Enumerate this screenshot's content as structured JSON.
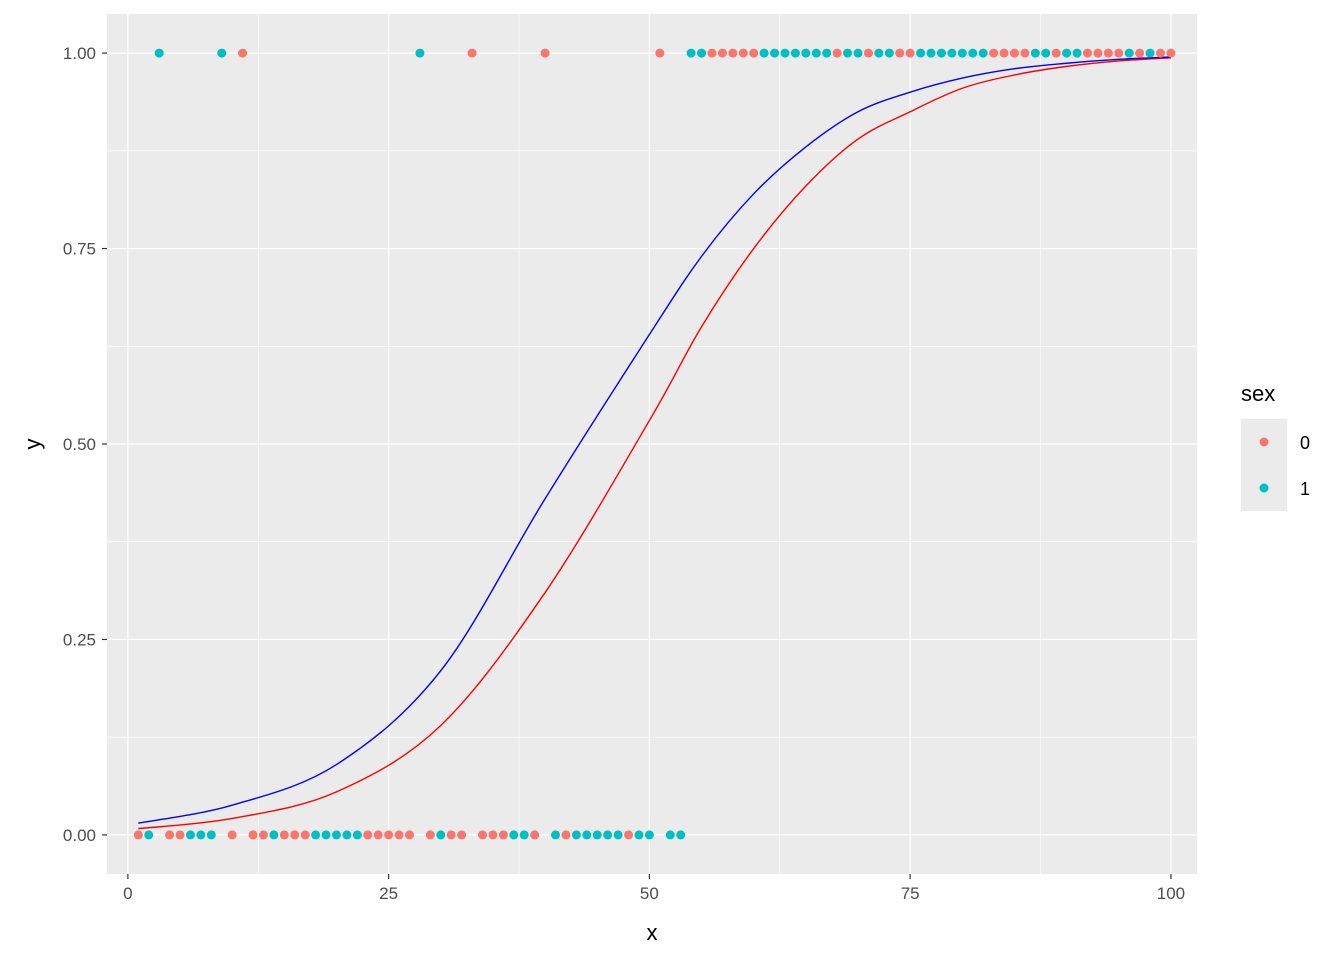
{
  "chart_data": {
    "type": "scatter",
    "xlabel": "x",
    "ylabel": "y",
    "xlim": [
      -2,
      102.5
    ],
    "ylim": [
      -0.05,
      1.05
    ],
    "x_ticks": [
      0,
      25,
      50,
      75,
      100
    ],
    "x_tick_labels": [
      "0",
      "25",
      "50",
      "75",
      "100"
    ],
    "y_ticks": [
      0,
      0.25,
      0.5,
      0.75,
      1
    ],
    "y_tick_labels": [
      "0.00",
      "0.25",
      "0.50",
      "0.75",
      "1.00"
    ],
    "grid": true,
    "legend": {
      "title": "sex",
      "position": "right",
      "entries": [
        {
          "label": "0",
          "color": "#F8766D"
        },
        {
          "label": "1",
          "color": "#00BFC4"
        }
      ]
    },
    "series": [
      {
        "name": "0",
        "color": "#F8766D",
        "points": [
          [
            1,
            0
          ],
          [
            4,
            0
          ],
          [
            5,
            0
          ],
          [
            10,
            0
          ],
          [
            12,
            0
          ],
          [
            13,
            0
          ],
          [
            15,
            0
          ],
          [
            16,
            0
          ],
          [
            17,
            0
          ],
          [
            23,
            0
          ],
          [
            24,
            0
          ],
          [
            25,
            0
          ],
          [
            26,
            0
          ],
          [
            27,
            0
          ],
          [
            29,
            0
          ],
          [
            31,
            0
          ],
          [
            32,
            0
          ],
          [
            34,
            0
          ],
          [
            35,
            0
          ],
          [
            36,
            0
          ],
          [
            39,
            0
          ],
          [
            42,
            0
          ],
          [
            48,
            0
          ],
          [
            11,
            1
          ],
          [
            33,
            1
          ],
          [
            40,
            1
          ],
          [
            51,
            1
          ],
          [
            56,
            1
          ],
          [
            57,
            1
          ],
          [
            58,
            1
          ],
          [
            59,
            1
          ],
          [
            60,
            1
          ],
          [
            68,
            1
          ],
          [
            71,
            1
          ],
          [
            74,
            1
          ],
          [
            75,
            1
          ],
          [
            83,
            1
          ],
          [
            84,
            1
          ],
          [
            85,
            1
          ],
          [
            86,
            1
          ],
          [
            89,
            1
          ],
          [
            92,
            1
          ],
          [
            93,
            1
          ],
          [
            94,
            1
          ],
          [
            95,
            1
          ],
          [
            97,
            1
          ],
          [
            99,
            1
          ],
          [
            100,
            1
          ]
        ]
      },
      {
        "name": "1",
        "color": "#00BFC4",
        "points": [
          [
            2,
            0
          ],
          [
            6,
            0
          ],
          [
            7,
            0
          ],
          [
            8,
            0
          ],
          [
            14,
            0
          ],
          [
            18,
            0
          ],
          [
            19,
            0
          ],
          [
            20,
            0
          ],
          [
            21,
            0
          ],
          [
            22,
            0
          ],
          [
            30,
            0
          ],
          [
            37,
            0
          ],
          [
            38,
            0
          ],
          [
            41,
            0
          ],
          [
            43,
            0
          ],
          [
            44,
            0
          ],
          [
            45,
            0
          ],
          [
            46,
            0
          ],
          [
            47,
            0
          ],
          [
            49,
            0
          ],
          [
            50,
            0
          ],
          [
            52,
            0
          ],
          [
            53,
            0
          ],
          [
            3,
            1
          ],
          [
            9,
            1
          ],
          [
            28,
            1
          ],
          [
            54,
            1
          ],
          [
            55,
            1
          ],
          [
            61,
            1
          ],
          [
            62,
            1
          ],
          [
            63,
            1
          ],
          [
            64,
            1
          ],
          [
            65,
            1
          ],
          [
            66,
            1
          ],
          [
            67,
            1
          ],
          [
            69,
            1
          ],
          [
            70,
            1
          ],
          [
            72,
            1
          ],
          [
            73,
            1
          ],
          [
            76,
            1
          ],
          [
            77,
            1
          ],
          [
            78,
            1
          ],
          [
            79,
            1
          ],
          [
            80,
            1
          ],
          [
            81,
            1
          ],
          [
            82,
            1
          ],
          [
            87,
            1
          ],
          [
            88,
            1
          ],
          [
            90,
            1
          ],
          [
            91,
            1
          ],
          [
            96,
            1
          ],
          [
            98,
            1
          ]
        ]
      }
    ],
    "fitted_lines": [
      {
        "color": "#FF0000",
        "points": [
          [
            1,
            0.008
          ],
          [
            10,
            0.021
          ],
          [
            20,
            0.055
          ],
          [
            30,
            0.14
          ],
          [
            40,
            0.31
          ],
          [
            50,
            0.53
          ],
          [
            55,
            0.65
          ],
          [
            60,
            0.75
          ],
          [
            65,
            0.83
          ],
          [
            70,
            0.89
          ],
          [
            75,
            0.925
          ],
          [
            80,
            0.955
          ],
          [
            85,
            0.972
          ],
          [
            90,
            0.983
          ],
          [
            95,
            0.99
          ],
          [
            100,
            0.994
          ]
        ]
      },
      {
        "color": "#0000FF",
        "points": [
          [
            1,
            0.015
          ],
          [
            10,
            0.038
          ],
          [
            20,
            0.09
          ],
          [
            30,
            0.21
          ],
          [
            40,
            0.43
          ],
          [
            50,
            0.64
          ],
          [
            55,
            0.74
          ],
          [
            60,
            0.82
          ],
          [
            65,
            0.88
          ],
          [
            70,
            0.925
          ],
          [
            75,
            0.95
          ],
          [
            80,
            0.968
          ],
          [
            85,
            0.98
          ],
          [
            90,
            0.987
          ],
          [
            95,
            0.992
          ],
          [
            100,
            0.995
          ]
        ]
      }
    ]
  }
}
